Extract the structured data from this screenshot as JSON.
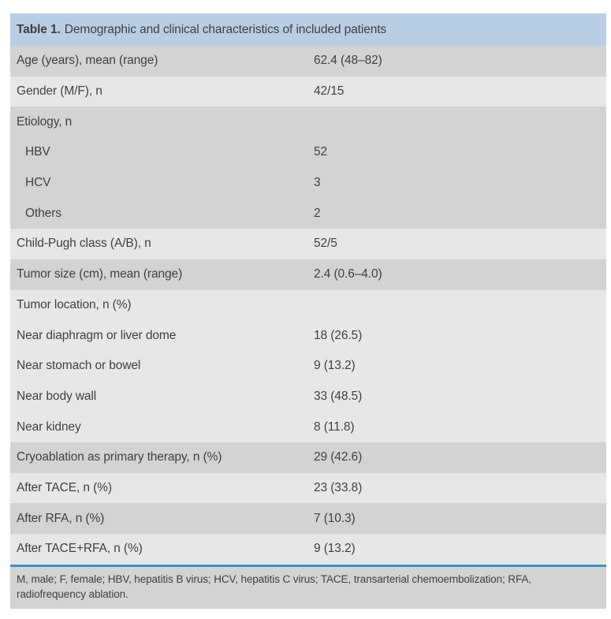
{
  "table": {
    "title": {
      "label": "Table 1.",
      "text": "Demographic and clinical characteristics of included patients"
    },
    "rows": [
      {
        "label": "Age (years), mean (range)",
        "value": "62.4 (48–82)",
        "shade": "dark",
        "indent": false
      },
      {
        "label": "Gender (M/F), n",
        "value": "42/15",
        "shade": "light",
        "indent": false
      },
      {
        "label": "Etiology, n",
        "value": "",
        "shade": "dark",
        "indent": false
      },
      {
        "label": "HBV",
        "value": "52",
        "shade": "dark",
        "indent": true
      },
      {
        "label": "HCV",
        "value": "3",
        "shade": "dark",
        "indent": true
      },
      {
        "label": "Others",
        "value": "2",
        "shade": "dark",
        "indent": true
      },
      {
        "label": "Child-Pugh class (A/B), n",
        "value": "52/5",
        "shade": "light",
        "indent": false
      },
      {
        "label": "Tumor size (cm), mean (range)",
        "value": "2.4 (0.6–4.0)",
        "shade": "dark",
        "indent": false
      },
      {
        "label": "Tumor location, n (%)",
        "value": "",
        "shade": "light",
        "indent": false
      },
      {
        "label": "Near diaphragm or liver dome",
        "value": "18 (26.5)",
        "shade": "light",
        "indent": false
      },
      {
        "label": "Near stomach or bowel",
        "value": "9 (13.2)",
        "shade": "light",
        "indent": false
      },
      {
        "label": "Near body wall",
        "value": "33 (48.5)",
        "shade": "light",
        "indent": false
      },
      {
        "label": "Near kidney",
        "value": "8 (11.8)",
        "shade": "light",
        "indent": false
      },
      {
        "label": "Cryoablation as primary therapy, n (%)",
        "value": "29 (42.6)",
        "shade": "dark",
        "indent": false
      },
      {
        "label": "After TACE, n (%)",
        "value": "23 (33.8)",
        "shade": "light",
        "indent": false
      },
      {
        "label": "After RFA, n (%)",
        "value": "7 (10.3)",
        "shade": "dark",
        "indent": false
      },
      {
        "label": "After TACE+RFA, n (%)",
        "value": "9 (13.2)",
        "shade": "light",
        "indent": false
      }
    ],
    "footnote": "M, male; F, female; HBV, hepatitis B virus; HCV, hepatitis C virus; TACE, transarterial chemoembolization; RFA, radiofrequency ablation.",
    "colors": {
      "header_bg": "#b9cee4",
      "row_dark": "#d1d3d4",
      "row_light": "#e6e7e8",
      "footnote_bg": "#d1d3d4",
      "separator_blue": "#3e92c4",
      "text": "#404043"
    }
  }
}
